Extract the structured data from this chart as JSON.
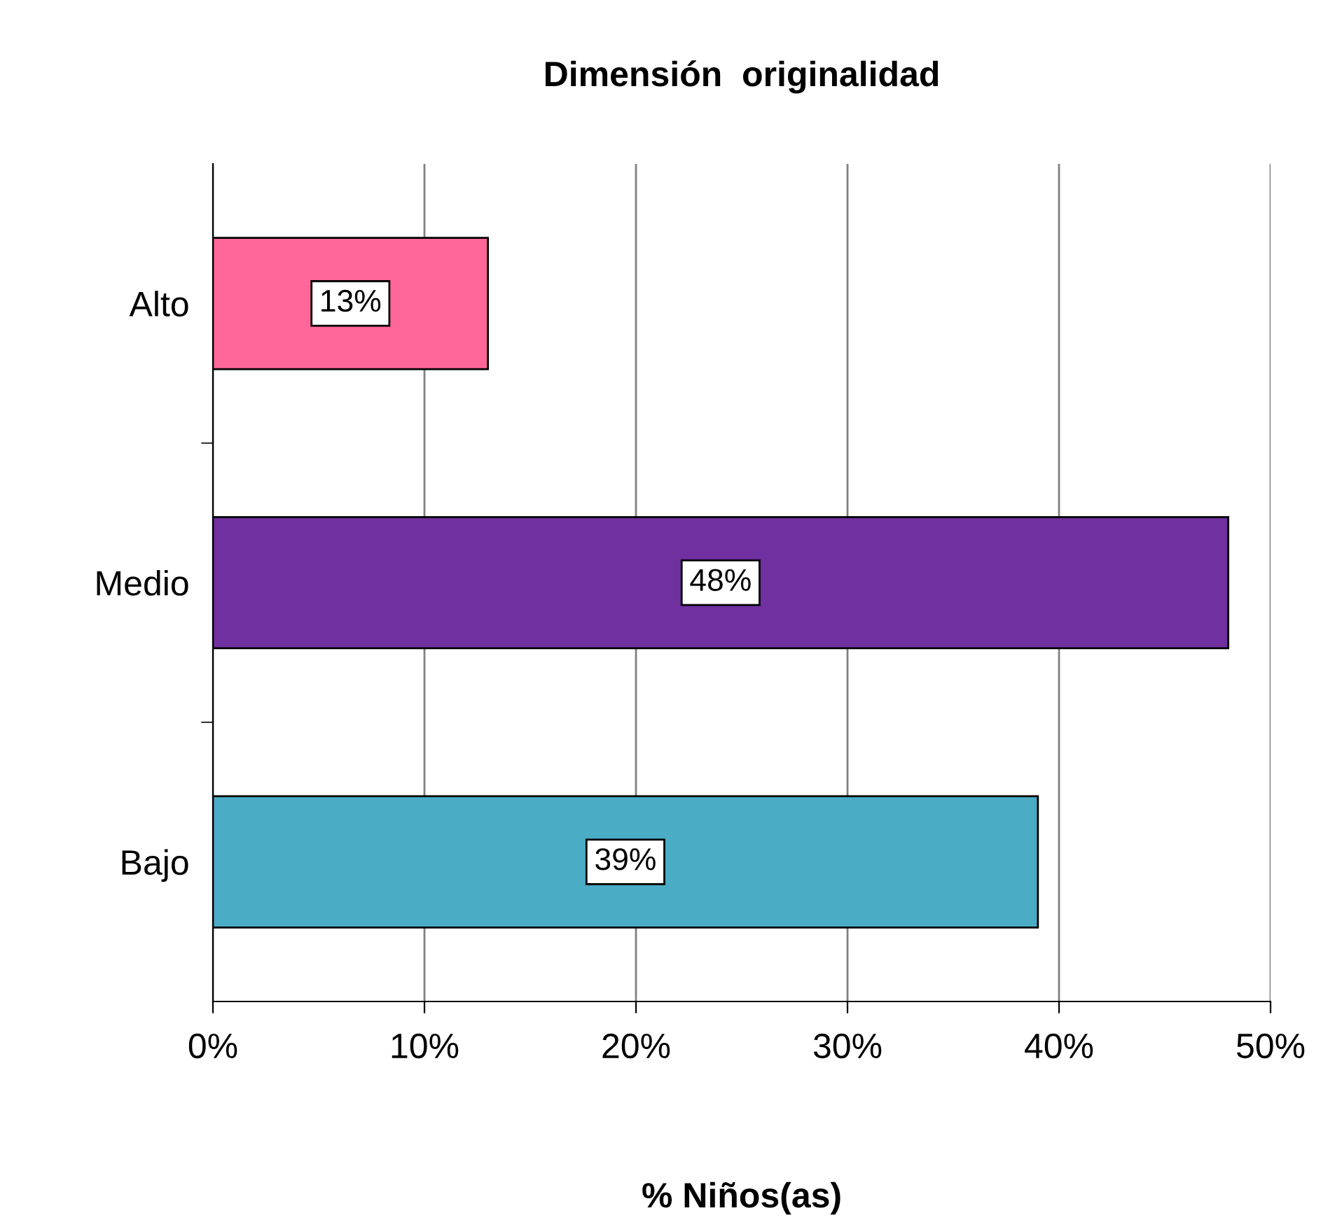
{
  "chart_data": {
    "type": "bar",
    "orientation": "horizontal",
    "title": "Dimensión  originalidad",
    "xlabel": "% Niños(as)",
    "categories": [
      "Alto",
      "Medio",
      "Bajo"
    ],
    "values": [
      13,
      48,
      39
    ],
    "colors": [
      "#ff6699",
      "#7030a0",
      "#4bacc6"
    ],
    "value_labels": [
      "13%",
      "48%",
      "39%"
    ],
    "xlim": [
      0,
      50
    ],
    "xticks": [
      {
        "value": 0,
        "label": "0%"
      },
      {
        "value": 10,
        "label": "10%"
      },
      {
        "value": 20,
        "label": "20%"
      },
      {
        "value": 30,
        "label": "30%"
      },
      {
        "value": 40,
        "label": "40%"
      },
      {
        "value": 50,
        "label": "50%"
      }
    ],
    "grid": "x",
    "legend": false
  }
}
